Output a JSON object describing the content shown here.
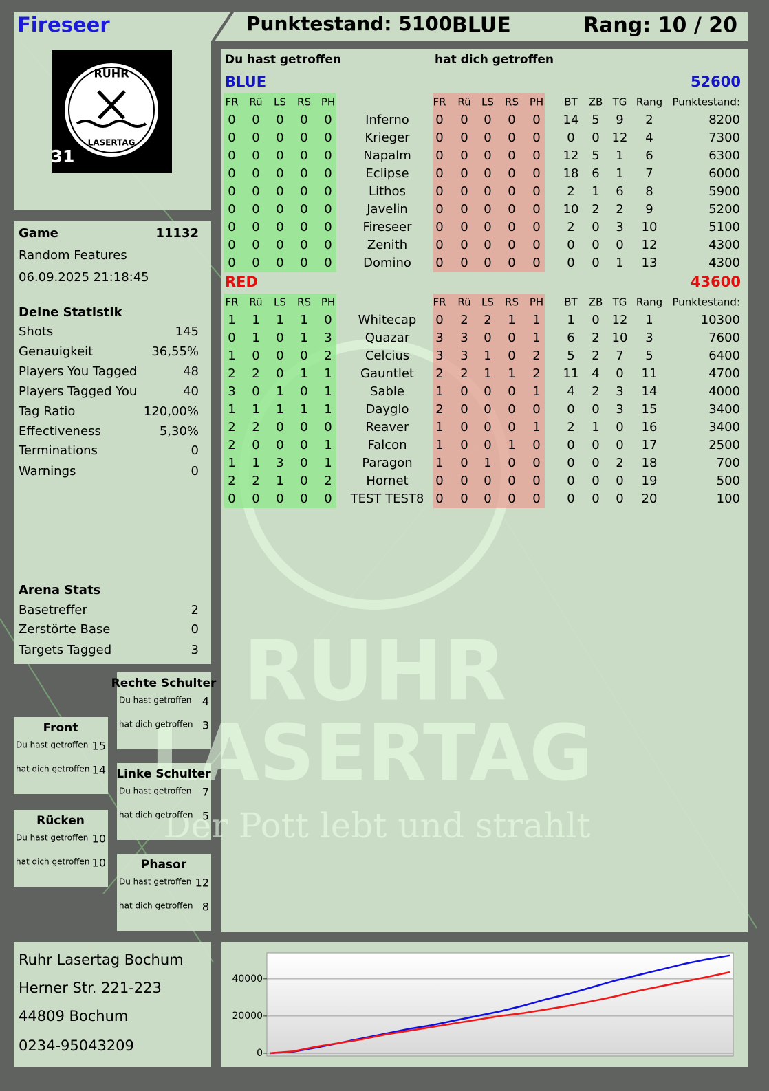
{
  "header": {
    "player": "Fireseer",
    "score": "Punktestand: 5100",
    "team": "BLUE",
    "rank": "Rang: 10 / 20"
  },
  "logo": {
    "top": "RUHR",
    "bottom": "LASERTAG",
    "badge": "31"
  },
  "watermark": {
    "line1": "RUHR",
    "line2": "LASERTAG",
    "slogan": "Der Pott lebt und strahlt"
  },
  "game": {
    "label": "Game",
    "id": 11132,
    "mode": "Random Features",
    "date": "06.09.2025 21:18:45"
  },
  "statistics": {
    "title": "Deine Statistik",
    "rows": [
      [
        "Shots",
        145
      ],
      [
        "Genauigkeit",
        "36,55%"
      ],
      [
        "Players You Tagged",
        48
      ],
      [
        "Players Tagged You",
        40
      ],
      [
        "Tag Ratio",
        "120,00%"
      ],
      [
        "Effectiveness",
        "5,30%"
      ],
      [
        "Terminations",
        0
      ],
      [
        "Warnings",
        0
      ]
    ]
  },
  "arena": {
    "title": "Arena Stats",
    "rows": [
      [
        "Basetreffer",
        2
      ],
      [
        "Zerstörte Base",
        0
      ],
      [
        "Targets Tagged",
        3
      ]
    ]
  },
  "labels": {
    "hit": "Du hast getroffen",
    "got": "hat dich getroffen"
  },
  "zones": [
    {
      "name": "Rechte Schulter",
      "hit": 4,
      "got": 3
    },
    {
      "name": "Front",
      "hit": 15,
      "got": 14
    },
    {
      "name": "Linke Schulter",
      "hit": 7,
      "got": 5
    },
    {
      "name": "Rücken",
      "hit": 10,
      "got": 10
    },
    {
      "name": "Phasor",
      "hit": 12,
      "got": 8
    }
  ],
  "address": [
    "Ruhr Lasertag Bochum",
    "Herner Str. 221-223",
    "44809 Bochum",
    "0234-95043209"
  ],
  "table": {
    "hit_columns": [
      "FR",
      "Rü",
      "LS",
      "RS",
      "PH"
    ],
    "stat_columns": [
      "BT",
      "ZB",
      "TG",
      "Rang",
      "Punktestand:"
    ],
    "teams": [
      {
        "name": "BLUE",
        "score": 52600,
        "color": "#1414c8",
        "rows": [
          {
            "name": "Inferno",
            "hits": [
              0,
              0,
              0,
              0,
              0
            ],
            "got": [
              0,
              0,
              0,
              0,
              0
            ],
            "stats": [
              14,
              5,
              9,
              2,
              8200
            ]
          },
          {
            "name": "Krieger",
            "hits": [
              0,
              0,
              0,
              0,
              0
            ],
            "got": [
              0,
              0,
              0,
              0,
              0
            ],
            "stats": [
              0,
              0,
              12,
              4,
              7300
            ]
          },
          {
            "name": "Napalm",
            "hits": [
              0,
              0,
              0,
              0,
              0
            ],
            "got": [
              0,
              0,
              0,
              0,
              0
            ],
            "stats": [
              12,
              5,
              1,
              6,
              6300
            ]
          },
          {
            "name": "Eclipse",
            "hits": [
              0,
              0,
              0,
              0,
              0
            ],
            "got": [
              0,
              0,
              0,
              0,
              0
            ],
            "stats": [
              18,
              6,
              1,
              7,
              6000
            ]
          },
          {
            "name": "Lithos",
            "hits": [
              0,
              0,
              0,
              0,
              0
            ],
            "got": [
              0,
              0,
              0,
              0,
              0
            ],
            "stats": [
              2,
              1,
              6,
              8,
              5900
            ]
          },
          {
            "name": "Javelin",
            "hits": [
              0,
              0,
              0,
              0,
              0
            ],
            "got": [
              0,
              0,
              0,
              0,
              0
            ],
            "stats": [
              10,
              2,
              2,
              9,
              5200
            ]
          },
          {
            "name": "Fireseer",
            "hits": [
              0,
              0,
              0,
              0,
              0
            ],
            "got": [
              0,
              0,
              0,
              0,
              0
            ],
            "stats": [
              2,
              0,
              3,
              10,
              5100
            ]
          },
          {
            "name": "Zenith",
            "hits": [
              0,
              0,
              0,
              0,
              0
            ],
            "got": [
              0,
              0,
              0,
              0,
              0
            ],
            "stats": [
              0,
              0,
              0,
              12,
              4300
            ]
          },
          {
            "name": "Domino",
            "hits": [
              0,
              0,
              0,
              0,
              0
            ],
            "got": [
              0,
              0,
              0,
              0,
              0
            ],
            "stats": [
              0,
              0,
              1,
              13,
              4300
            ]
          }
        ]
      },
      {
        "name": "RED",
        "score": 43600,
        "color": "#e01010",
        "rows": [
          {
            "name": "Whitecap",
            "hits": [
              1,
              1,
              1,
              1,
              0
            ],
            "got": [
              0,
              2,
              2,
              1,
              1
            ],
            "stats": [
              1,
              0,
              12,
              1,
              10300
            ]
          },
          {
            "name": "Quazar",
            "hits": [
              0,
              1,
              0,
              1,
              3
            ],
            "got": [
              3,
              3,
              0,
              0,
              1
            ],
            "stats": [
              6,
              2,
              10,
              3,
              7600
            ]
          },
          {
            "name": "Celcius",
            "hits": [
              1,
              0,
              0,
              0,
              2
            ],
            "got": [
              3,
              3,
              1,
              0,
              2
            ],
            "stats": [
              5,
              2,
              7,
              5,
              6400
            ]
          },
          {
            "name": "Gauntlet",
            "hits": [
              2,
              2,
              0,
              1,
              1
            ],
            "got": [
              2,
              2,
              1,
              1,
              2
            ],
            "stats": [
              11,
              4,
              0,
              11,
              4700
            ]
          },
          {
            "name": "Sable",
            "hits": [
              3,
              0,
              1,
              0,
              1
            ],
            "got": [
              1,
              0,
              0,
              0,
              1
            ],
            "stats": [
              4,
              2,
              3,
              14,
              4000
            ]
          },
          {
            "name": "Dayglo",
            "hits": [
              1,
              1,
              1,
              1,
              1
            ],
            "got": [
              2,
              0,
              0,
              0,
              0
            ],
            "stats": [
              0,
              0,
              3,
              15,
              3400
            ]
          },
          {
            "name": "Reaver",
            "hits": [
              2,
              2,
              0,
              0,
              0
            ],
            "got": [
              1,
              0,
              0,
              0,
              1
            ],
            "stats": [
              2,
              1,
              0,
              16,
              3400
            ]
          },
          {
            "name": "Falcon",
            "hits": [
              2,
              0,
              0,
              0,
              1
            ],
            "got": [
              1,
              0,
              0,
              1,
              0
            ],
            "stats": [
              0,
              0,
              0,
              17,
              2500
            ]
          },
          {
            "name": "Paragon",
            "hits": [
              1,
              1,
              3,
              0,
              1
            ],
            "got": [
              1,
              0,
              1,
              0,
              0
            ],
            "stats": [
              0,
              0,
              2,
              18,
              700
            ]
          },
          {
            "name": "Hornet",
            "hits": [
              2,
              2,
              1,
              0,
              2
            ],
            "got": [
              0,
              0,
              0,
              0,
              0
            ],
            "stats": [
              0,
              0,
              0,
              19,
              500
            ]
          },
          {
            "name": "TEST TEST8",
            "hits": [
              0,
              0,
              0,
              0,
              0
            ],
            "got": [
              0,
              0,
              0,
              0,
              0
            ],
            "stats": [
              0,
              0,
              0,
              20,
              100
            ]
          }
        ]
      }
    ]
  },
  "chart_data": {
    "type": "line",
    "ylim": [
      -1500,
      54000
    ],
    "yticks": [
      0,
      20000,
      40000
    ],
    "grid": true,
    "series": [
      {
        "name": "BLUE",
        "color": "#1010e0",
        "values": [
          0,
          800,
          3000,
          5500,
          8000,
          10500,
          13000,
          15000,
          17500,
          20000,
          22500,
          25500,
          29000,
          32000,
          35500,
          39000,
          42000,
          45000,
          48000,
          50500,
          52600
        ]
      },
      {
        "name": "RED",
        "color": "#f01818",
        "values": [
          0,
          1000,
          3500,
          5500,
          7500,
          10000,
          12000,
          14000,
          16000,
          18000,
          20000,
          21500,
          23500,
          25500,
          28000,
          30500,
          33500,
          36000,
          38500,
          41000,
          43600
        ]
      }
    ]
  }
}
